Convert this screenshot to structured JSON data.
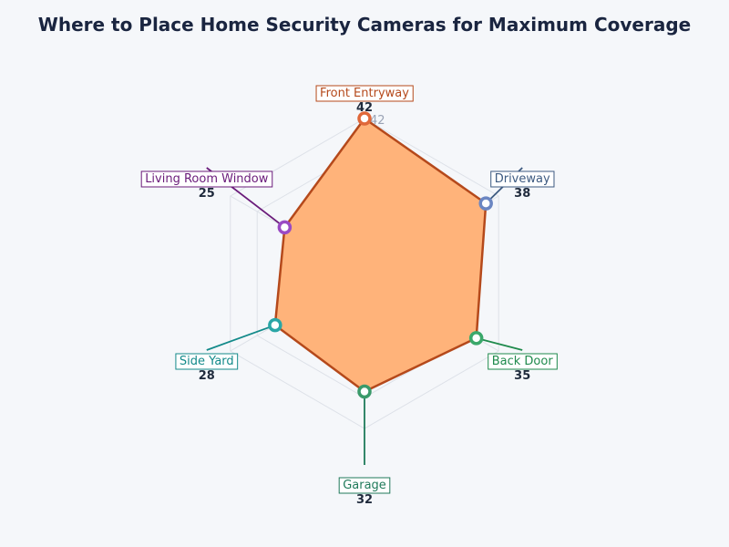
{
  "chart_data": {
    "type": "radar",
    "title": "Where to Place Home Security Cameras for Maximum Coverage",
    "categories": [
      "Front Entryway",
      "Driveway",
      "Back Door",
      "Garage",
      "Side Yard",
      "Living Room Window"
    ],
    "values": [
      42,
      38,
      35,
      32,
      28,
      25
    ],
    "rmax": 42,
    "tick_label": "42",
    "grid": true,
    "colors": {
      "fill": "#ffb37a",
      "outline": "#b5491b",
      "title": "#1a2540",
      "categories": [
        "#b5491b",
        "#3d5a80",
        "#1f8a4c",
        "#1f7a5a",
        "#138a8a",
        "#6a1b7a"
      ],
      "markers": [
        "#e0683a",
        "#6b86c2",
        "#3aa86a",
        "#3a9a6a",
        "#2aa6a6",
        "#9a4ac4"
      ]
    }
  }
}
